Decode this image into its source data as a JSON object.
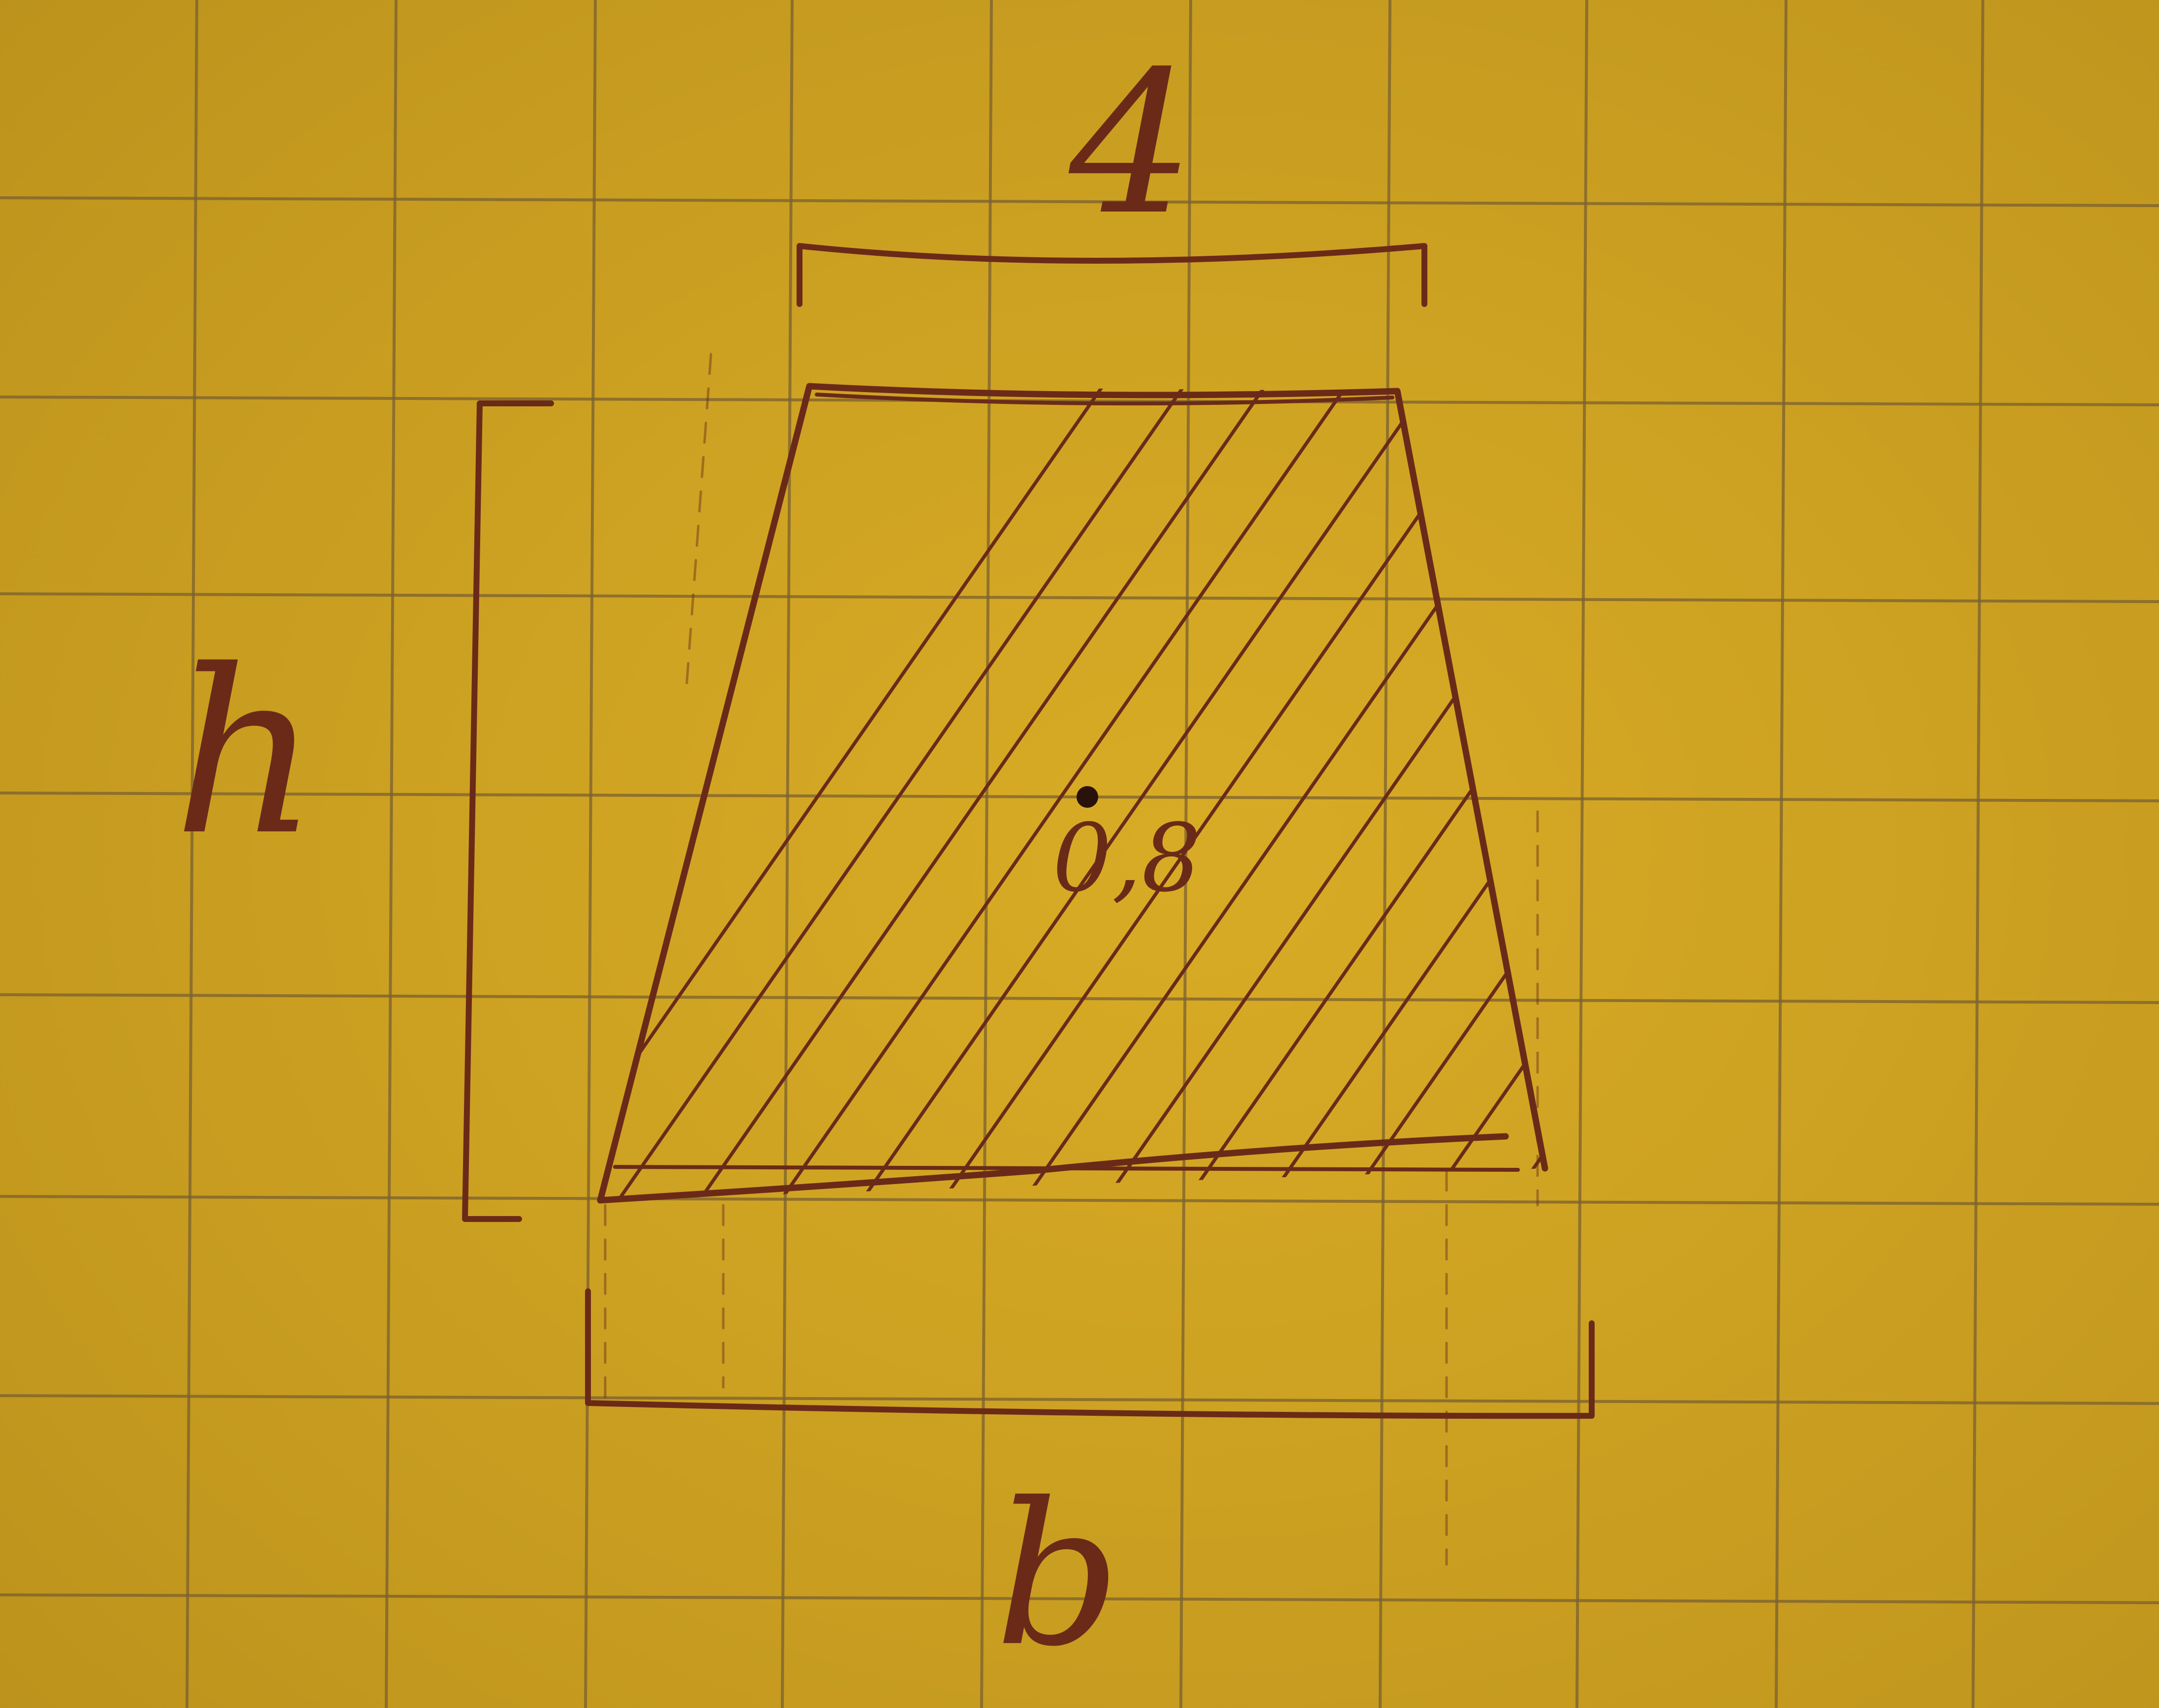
{
  "labels": {
    "top": "4",
    "left": "h",
    "center": "0,8",
    "bottom": "b"
  },
  "colors": {
    "paper": "#d4a622",
    "grid": "#7a6030",
    "ink": "#6b2a18"
  }
}
